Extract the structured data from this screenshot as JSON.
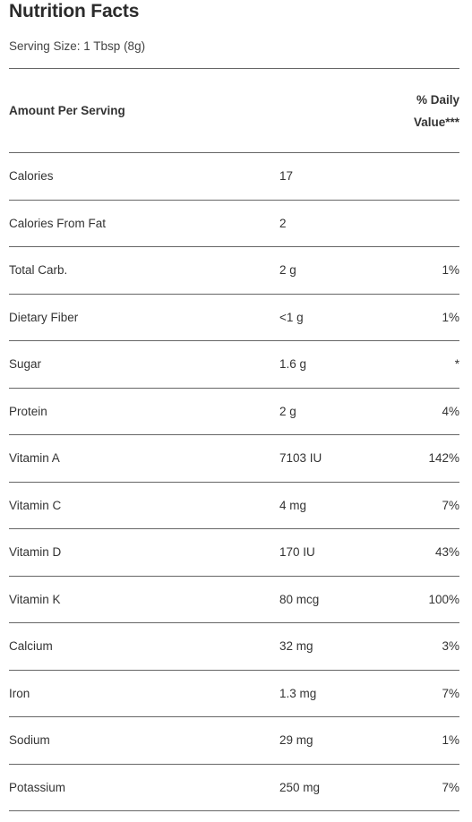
{
  "title": "Nutrition Facts",
  "serving_size": "Serving Size: 1 Tbsp (8g)",
  "header": {
    "amount_label": "Amount Per Serving",
    "dv_label_line1": "% Daily",
    "dv_label_line2": "Value***"
  },
  "rows": [
    {
      "name": "Calories",
      "amount": "17",
      "dv": ""
    },
    {
      "name": "Calories From Fat",
      "amount": "2",
      "dv": ""
    },
    {
      "name": "Total Carb.",
      "amount": "2 g",
      "dv": "1%"
    },
    {
      "name": "Dietary Fiber",
      "amount": "<1 g",
      "dv": "1%"
    },
    {
      "name": "Sugar",
      "amount": "1.6 g",
      "dv": "*"
    },
    {
      "name": "Protein",
      "amount": "2 g",
      "dv": "4%"
    },
    {
      "name": "Vitamin A",
      "amount": "7103 IU",
      "dv": "142%"
    },
    {
      "name": "Vitamin C",
      "amount": "4 mg",
      "dv": "7%"
    },
    {
      "name": "Vitamin D",
      "amount": "170 IU",
      "dv": "43%"
    },
    {
      "name": "Vitamin K",
      "amount": "80 mcg",
      "dv": "100%"
    },
    {
      "name": "Calcium",
      "amount": "32 mg",
      "dv": "3%"
    },
    {
      "name": "Iron",
      "amount": "1.3 mg",
      "dv": "7%"
    },
    {
      "name": "Sodium",
      "amount": "29 mg",
      "dv": "1%"
    },
    {
      "name": "Potassium",
      "amount": "250 mg",
      "dv": "7%"
    }
  ]
}
